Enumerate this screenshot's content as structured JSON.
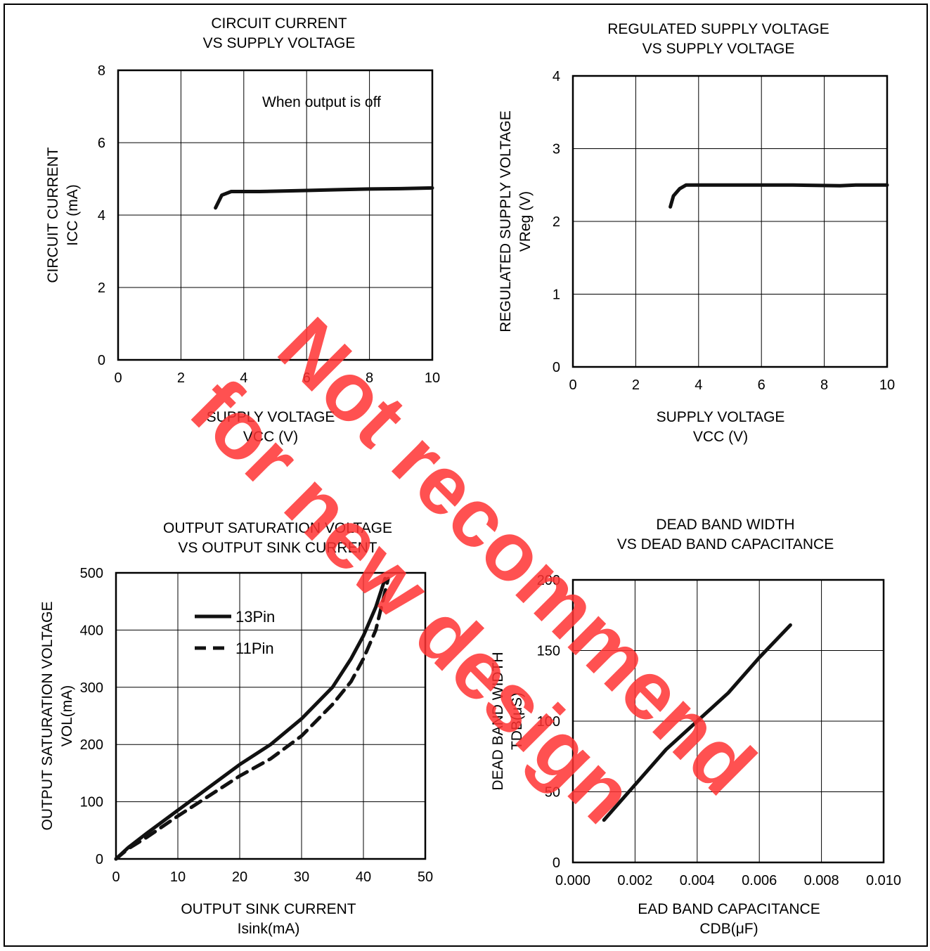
{
  "watermark": "Not recommend for new design",
  "colors": {
    "watermark": "#ff3333",
    "line": "#111111",
    "grid": "#000000"
  },
  "chart_data": [
    {
      "type": "line",
      "title": [
        "CIRCUIT CURRENT",
        "VS SUPPLY VOLTAGE"
      ],
      "xlabel": [
        "SUPPLY VOLTAGE",
        "VCC (V)"
      ],
      "ylabel": [
        "CIRCUIT CURRENT",
        "ICC (mA)"
      ],
      "xlim": [
        0,
        10
      ],
      "ylim": [
        0,
        8
      ],
      "xticks": [
        0,
        2,
        4,
        6,
        8,
        10
      ],
      "yticks": [
        0,
        2,
        4,
        6,
        8
      ],
      "grid": true,
      "annotations": [
        "When output  is off"
      ],
      "series": [
        {
          "name": "",
          "dash": false,
          "x": [
            3.1,
            3.3,
            3.6,
            4.5,
            6,
            7,
            8,
            9,
            10
          ],
          "y": [
            4.2,
            4.55,
            4.65,
            4.65,
            4.68,
            4.7,
            4.72,
            4.73,
            4.75
          ]
        }
      ]
    },
    {
      "type": "line",
      "title": [
        "REGULATED SUPPLY VOLTAGE",
        "VS SUPPLY VOLTAGE"
      ],
      "xlabel": [
        "SUPPLY VOLTAGE",
        "VCC (V)"
      ],
      "ylabel": [
        "REGULATED SUPPLY  VOLTAGE",
        "VReg (V)"
      ],
      "xlim": [
        0,
        10
      ],
      "ylim": [
        0,
        4
      ],
      "xticks": [
        0,
        2,
        4,
        6,
        8,
        10
      ],
      "yticks": [
        0,
        1,
        2,
        3,
        4
      ],
      "grid": true,
      "annotations": [],
      "series": [
        {
          "name": "",
          "dash": false,
          "x": [
            3.1,
            3.2,
            3.4,
            3.6,
            5,
            7,
            8.5,
            9,
            10
          ],
          "y": [
            2.2,
            2.35,
            2.45,
            2.5,
            2.5,
            2.5,
            2.49,
            2.5,
            2.5
          ]
        }
      ]
    },
    {
      "type": "line",
      "title": [
        "OUTPUT  SATURATION VOLTAGE",
        "VS OUTPUT SINK CURRENT"
      ],
      "xlabel": [
        "OUTPUT SINK CURRENT",
        "Isink(mA)"
      ],
      "ylabel": [
        "OUTPUT SATURATION VOLTAGE",
        "VOL(mA)"
      ],
      "xlim": [
        0,
        50
      ],
      "ylim": [
        0,
        500
      ],
      "xticks": [
        0,
        10,
        20,
        30,
        40,
        50
      ],
      "yticks": [
        0,
        100,
        200,
        300,
        400,
        500
      ],
      "grid": true,
      "annotations": [],
      "legend": [
        "13Pin",
        "11Pin"
      ],
      "series": [
        {
          "name": "13Pin",
          "dash": false,
          "x": [
            0,
            2,
            5,
            10,
            15,
            20,
            25,
            30,
            35,
            38,
            40,
            42,
            43.5
          ],
          "y": [
            0,
            20,
            45,
            85,
            125,
            165,
            200,
            245,
            300,
            350,
            390,
            440,
            490
          ]
        },
        {
          "name": "11Pin",
          "dash": true,
          "x": [
            0,
            2,
            5,
            10,
            15,
            20,
            25,
            30,
            35,
            38,
            40,
            42,
            44
          ],
          "y": [
            0,
            18,
            38,
            75,
            110,
            145,
            175,
            215,
            270,
            310,
            350,
            400,
            490
          ]
        }
      ]
    },
    {
      "type": "line",
      "title": [
        "DEAD BAND WIDTH",
        "VS DEAD BAND CAPACITANCE"
      ],
      "xlabel": [
        "EAD BAND CAPACITANCE",
        "CDB(μF)"
      ],
      "ylabel": [
        "DEAD BAND WIDTH",
        "TDB(μS)"
      ],
      "xlim": [
        0,
        0.01
      ],
      "ylim": [
        0,
        200
      ],
      "xticks": [
        "0.000",
        "0.002",
        "0.004",
        "0.006",
        "0.008",
        "0.010"
      ],
      "yticks": [
        0,
        50,
        100,
        150,
        200
      ],
      "grid": true,
      "annotations": [],
      "series": [
        {
          "name": "",
          "dash": false,
          "x": [
            0.001,
            0.002,
            0.003,
            0.004,
            0.005,
            0.006,
            0.007
          ],
          "y": [
            30,
            55,
            80,
            100,
            120,
            145,
            168
          ]
        }
      ]
    }
  ]
}
